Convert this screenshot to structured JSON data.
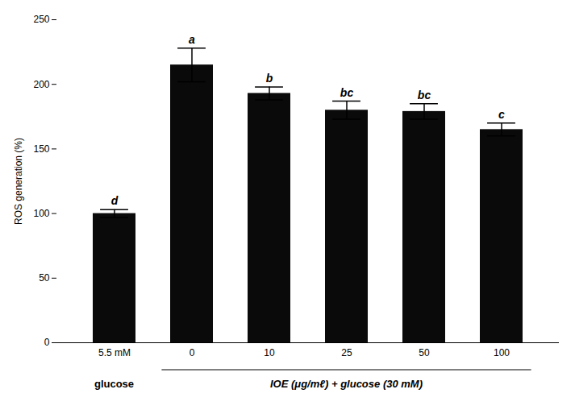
{
  "chart_data": {
    "type": "bar",
    "categories": [
      "5.5 mM",
      "0",
      "10",
      "25",
      "50",
      "100"
    ],
    "values": [
      100,
      215,
      193,
      180,
      179,
      165
    ],
    "errors": [
      3,
      13,
      5,
      7,
      6,
      5
    ],
    "significance_labels": [
      "d",
      "a",
      "b",
      "bc",
      "bc",
      "c"
    ],
    "category_groups": [
      {
        "label": "glucose",
        "categories": [
          "5.5 mM"
        ]
      },
      {
        "label": "IOE (μg/mℓ) + glucose (30 mM)",
        "categories": [
          "0",
          "10",
          "25",
          "50",
          "100"
        ]
      }
    ],
    "color": "#0a0a0a",
    "ylabel": "ROS generation (%)",
    "ylim": [
      0,
      250
    ],
    "yticks": [
      0,
      50,
      100,
      150,
      200,
      250
    ],
    "grid": false
  }
}
